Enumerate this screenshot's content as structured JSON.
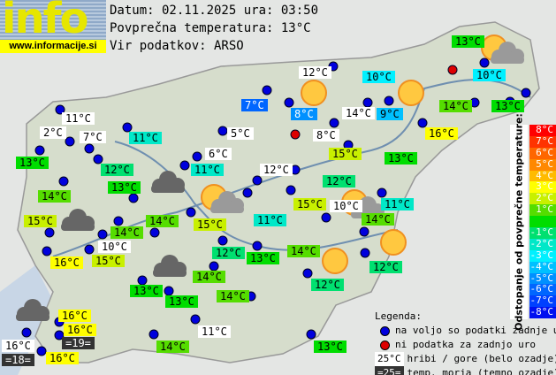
{
  "logo": {
    "text": "info",
    "url": "www.informacije.si"
  },
  "header": {
    "date_line": "Datum: 02.11.2025 ura: 03:50",
    "avg_line": "Povprečna temperatura: 13°C",
    "source_line": "Vir podatkov: ARSO"
  },
  "colors": {
    "p8": "#ff0000",
    "p7": "#ff3300",
    "p6": "#ff6600",
    "p5": "#ff8800",
    "p4": "#ffbb00",
    "p3": "#ffff00",
    "p2": "#c8f000",
    "p1": "#55dd00",
    "z": "#00dd00",
    "m1": "#00e070",
    "m2": "#00e8c8",
    "m3": "#00f0ff",
    "m4": "#00c0ff",
    "m5": "#0090ff",
    "m6": "#0066ff",
    "m7": "#0040ff",
    "m8": "#0010f0",
    "hill": "#ffffff",
    "sea": "#333333",
    "available": "#0000dd",
    "missing": "#dd0000"
  },
  "labels": [
    {
      "t": "13°C",
      "c": "z"
    },
    {
      "t": "10°C",
      "c": "m3"
    },
    {
      "t": "12°C",
      "c": "hill"
    },
    {
      "t": "10°C",
      "c": "m3"
    },
    {
      "t": "7°C",
      "c": "m6"
    },
    {
      "t": "8°C",
      "c": "m5"
    },
    {
      "t": "14°C",
      "c": "hill"
    },
    {
      "t": "9°C",
      "c": "m4"
    },
    {
      "t": "14°C",
      "c": "p1"
    },
    {
      "t": "13°C",
      "c": "z"
    },
    {
      "t": "11°C",
      "c": "hill"
    },
    {
      "t": "2°C",
      "c": "hill"
    },
    {
      "t": "7°C",
      "c": "hill"
    },
    {
      "t": "11°C",
      "c": "m2"
    },
    {
      "t": "5°C",
      "c": "hill"
    },
    {
      "t": "8°C",
      "c": "hill"
    },
    {
      "t": "16°C",
      "c": "p3"
    },
    {
      "t": "6°C",
      "c": "hill"
    },
    {
      "t": "15°C",
      "c": "p2"
    },
    {
      "t": "13°C",
      "c": "z"
    },
    {
      "t": "12°C",
      "c": "m1"
    },
    {
      "t": "11°C",
      "c": "m2"
    },
    {
      "t": "12°C",
      "c": "hill"
    },
    {
      "t": "13°C",
      "c": "z"
    },
    {
      "t": "13°C",
      "c": "z"
    },
    {
      "t": "12°C",
      "c": "m1"
    },
    {
      "t": "14°C",
      "c": "p1"
    },
    {
      "t": "15°C",
      "c": "p2"
    },
    {
      "t": "10°C",
      "c": "hill"
    },
    {
      "t": "11°C",
      "c": "m2"
    },
    {
      "t": "14°C",
      "c": "p1"
    },
    {
      "t": "15°C",
      "c": "p2"
    },
    {
      "t": "14°C",
      "c": "p1"
    },
    {
      "t": "14°C",
      "c": "p1"
    },
    {
      "t": "15°C",
      "c": "p2"
    },
    {
      "t": "11°C",
      "c": "m2"
    },
    {
      "t": "10°C",
      "c": "hill"
    },
    {
      "t": "16°C",
      "c": "p3"
    },
    {
      "t": "15°C",
      "c": "p2"
    },
    {
      "t": "12°C",
      "c": "m1"
    },
    {
      "t": "13°C",
      "c": "z"
    },
    {
      "t": "14°C",
      "c": "p1"
    },
    {
      "t": "14°C",
      "c": "p1"
    },
    {
      "t": "12°C",
      "c": "m1"
    },
    {
      "t": "12°C",
      "c": "m1"
    },
    {
      "t": "13°C",
      "c": "z"
    },
    {
      "t": "13°C",
      "c": "z"
    },
    {
      "t": "14°C",
      "c": "p1"
    },
    {
      "t": "16°C",
      "c": "p3"
    },
    {
      "t": "16°C",
      "c": "p3"
    },
    {
      "t": "=19=",
      "c": "sea"
    },
    {
      "t": "16°C",
      "c": "hill"
    },
    {
      "t": "=18=",
      "c": "sea"
    },
    {
      "t": "16°C",
      "c": "p3"
    },
    {
      "t": "14°C",
      "c": "p1"
    },
    {
      "t": "11°C",
      "c": "hill"
    },
    {
      "t": "13°C",
      "c": "z"
    }
  ],
  "scale": {
    "title": "Odstopanje od povprečne temperature:",
    "steps": [
      {
        "t": "8°C",
        "c": "p8"
      },
      {
        "t": "7°C",
        "c": "p7"
      },
      {
        "t": "6°C",
        "c": "p6"
      },
      {
        "t": "5°C",
        "c": "p5"
      },
      {
        "t": "4°C",
        "c": "p4"
      },
      {
        "t": "3°C",
        "c": "p3"
      },
      {
        "t": "2°C",
        "c": "p2"
      },
      {
        "t": "1°C",
        "c": "p1"
      },
      {
        "t": "",
        "c": "z"
      },
      {
        "t": "-1°C",
        "c": "m1"
      },
      {
        "t": "-2°C",
        "c": "m2"
      },
      {
        "t": "-3°C",
        "c": "m3"
      },
      {
        "t": "-4°C",
        "c": "m4"
      },
      {
        "t": "-5°C",
        "c": "m5"
      },
      {
        "t": "-6°C",
        "c": "m6"
      },
      {
        "t": "-7°C",
        "c": "m7"
      },
      {
        "t": "-8°C",
        "c": "m8"
      }
    ]
  },
  "legend": {
    "title": "Legenda:",
    "available": "na voljo so podatki zadnje ure",
    "missing": "ni podatka za zadnjo uro",
    "hill_chip": "25°C",
    "hill_text": "hribi / gore (belo ozadje)",
    "sea_chip": "=25=",
    "sea_text": "temp. morja (temno ozadje)"
  },
  "weather_icons": [
    "sun",
    "sun",
    "sun-cloud",
    "sun-cloud",
    "sun-cloud",
    "sun",
    "sun",
    "cloud",
    "cloud",
    "cloud",
    "cloud"
  ]
}
